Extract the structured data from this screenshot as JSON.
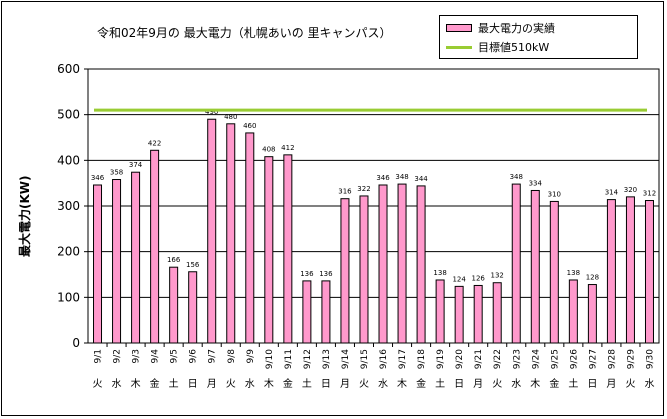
{
  "chart_data": {
    "type": "bar",
    "title": "令和02年9月の 最大電力（札幌あいの 里キャンパス）",
    "ylabel": "最大電力(KW)",
    "xlabel": "",
    "ylim": [
      0,
      600
    ],
    "yticks": [
      0,
      100,
      200,
      300,
      400,
      500,
      600
    ],
    "categories": [
      "9/1",
      "9/2",
      "9/3",
      "9/4",
      "9/5",
      "9/6",
      "9/7",
      "9/8",
      "9/9",
      "9/10",
      "9/11",
      "9/12",
      "9/13",
      "9/14",
      "9/15",
      "9/16",
      "9/17",
      "9/18",
      "9/19",
      "9/20",
      "9/21",
      "9/22",
      "9/23",
      "9/24",
      "9/25",
      "9/26",
      "9/27",
      "9/28",
      "9/29",
      "9/30"
    ],
    "weekdays": [
      "火",
      "水",
      "木",
      "金",
      "土",
      "日",
      "月",
      "火",
      "水",
      "木",
      "金",
      "土",
      "日",
      "月",
      "火",
      "水",
      "木",
      "金",
      "土",
      "日",
      "月",
      "火",
      "水",
      "木",
      "金",
      "土",
      "日",
      "月",
      "火",
      "水"
    ],
    "series": [
      {
        "name": "最大電力の実績",
        "type": "bar",
        "values": [
          346,
          358,
          374,
          422,
          166,
          156,
          490,
          480,
          460,
          408,
          412,
          136,
          136,
          316,
          322,
          346,
          348,
          344,
          138,
          124,
          126,
          132,
          348,
          334,
          310,
          138,
          128,
          314,
          320,
          312
        ]
      },
      {
        "name": "目標値510kW",
        "type": "line",
        "value": 510
      }
    ],
    "colors": {
      "bar": "#ff99cc",
      "target": "#99cc33"
    },
    "grid": true,
    "legend": "top-right"
  }
}
